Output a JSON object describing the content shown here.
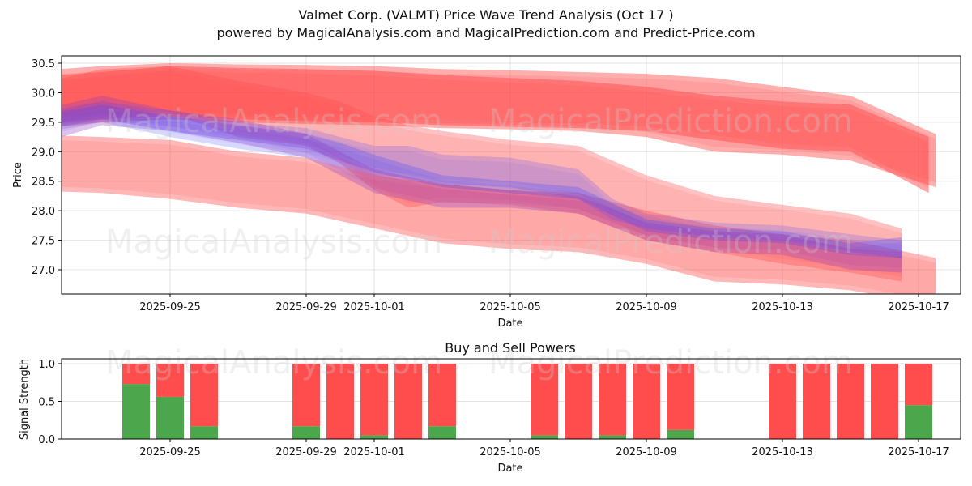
{
  "header": {
    "title": "Valmet Corp. (VALMT) Price Wave Trend Analysis (Oct 17 )",
    "subtitle": "powered by MagicalAnalysis.com and MagicalPrediction.com and Predict-Price.com"
  },
  "watermarks": [
    "MagicalAnalysis.com",
    "MagicalPrediction.com"
  ],
  "colors": {
    "sell_red": "#ff4c4c",
    "buy_green": "#4ca64c",
    "band_red": "#ff4c4c",
    "band_blue": "#4c4cff"
  },
  "chart_data": [
    {
      "type": "area",
      "title": "",
      "xlabel": "Date",
      "ylabel": "Price",
      "ylim": [
        26.6,
        30.6
      ],
      "yticks": [
        "27.0",
        "27.5",
        "28.0",
        "28.5",
        "29.0",
        "29.5",
        "30.0",
        "30.5"
      ],
      "ytick_values": [
        27.0,
        27.5,
        28.0,
        28.5,
        29.0,
        29.5,
        30.0,
        30.5
      ],
      "xlim": [
        "2025-09-21",
        "2025-10-18"
      ],
      "xticks": [
        "2025-09-25",
        "2025-09-29",
        "2025-10-01",
        "2025-10-05",
        "2025-10-09",
        "2025-10-13",
        "2025-10-17"
      ],
      "grid": true,
      "series": [
        {
          "name": "upper-red-band",
          "color": "red",
          "opacity": 0.45,
          "x": [
            -0.5,
            2,
            4,
            6,
            8,
            10,
            12,
            14,
            16,
            18,
            20,
            22,
            24,
            26.5
          ],
          "upper": [
            30.35,
            30.45,
            30.5,
            30.48,
            30.47,
            30.45,
            30.4,
            30.38,
            30.35,
            30.32,
            30.25,
            30.1,
            29.95,
            29.3
          ],
          "lower": [
            29.35,
            29.5,
            29.55,
            29.5,
            29.47,
            29.45,
            29.4,
            29.38,
            29.35,
            29.25,
            29.0,
            28.95,
            28.85,
            28.4
          ]
        },
        {
          "name": "upper-red-band-2",
          "color": "red",
          "opacity": 0.5,
          "x": [
            -0.5,
            2,
            4,
            6,
            8,
            10,
            12,
            14,
            16,
            18,
            20,
            22,
            24,
            26.3
          ],
          "upper": [
            30.25,
            30.35,
            30.45,
            30.42,
            30.4,
            30.37,
            30.3,
            30.25,
            30.2,
            30.1,
            29.95,
            29.85,
            29.8,
            29.25
          ],
          "lower": [
            29.45,
            29.55,
            29.6,
            29.55,
            29.52,
            29.5,
            29.45,
            29.42,
            29.4,
            29.35,
            29.2,
            29.05,
            29.0,
            28.3
          ]
        },
        {
          "name": "lower-red-band",
          "color": "red",
          "opacity": 0.4,
          "x": [
            -0.5,
            2,
            4,
            6,
            8,
            10,
            12,
            14,
            16,
            18,
            20,
            22,
            24,
            26.5
          ],
          "upper": [
            29.3,
            29.25,
            29.2,
            29.0,
            28.9,
            28.6,
            28.45,
            28.35,
            28.3,
            28.0,
            27.75,
            27.6,
            27.5,
            27.2
          ],
          "lower": [
            28.35,
            28.3,
            28.2,
            28.05,
            27.95,
            27.7,
            27.45,
            27.35,
            27.3,
            27.1,
            26.8,
            26.75,
            26.65,
            26.4
          ]
        },
        {
          "name": "mid-red-band",
          "color": "red",
          "opacity": 0.35,
          "x": [
            0.5,
            2,
            4,
            6,
            8,
            9,
            10,
            11,
            12,
            14,
            16,
            18,
            20,
            22,
            24,
            25.5
          ],
          "upper": [
            30.2,
            30.4,
            30.45,
            30.2,
            30.0,
            29.85,
            29.6,
            29.45,
            29.35,
            29.2,
            29.1,
            28.6,
            28.25,
            28.1,
            27.95,
            27.7
          ],
          "lower": [
            29.55,
            29.75,
            29.65,
            29.25,
            29.1,
            28.8,
            28.35,
            28.05,
            28.15,
            28.1,
            27.95,
            27.5,
            27.3,
            27.1,
            26.95,
            26.8
          ]
        },
        {
          "name": "blue-band-outer",
          "color": "blue",
          "opacity": 0.22,
          "x": [
            0.5,
            2,
            4,
            6,
            8,
            10,
            11,
            12,
            14,
            16,
            17,
            18,
            20,
            22,
            24,
            25.5
          ],
          "upper": [
            29.7,
            29.85,
            29.7,
            29.5,
            29.4,
            29.1,
            29.1,
            28.95,
            28.9,
            28.7,
            28.2,
            27.95,
            27.8,
            27.75,
            27.6,
            27.5
          ],
          "lower": [
            29.35,
            29.5,
            29.25,
            29.05,
            28.9,
            28.6,
            28.55,
            28.45,
            28.4,
            28.2,
            27.85,
            27.7,
            27.55,
            27.5,
            27.3,
            27.2
          ]
        },
        {
          "name": "blue-band-inner",
          "color": "blue",
          "opacity": 0.3,
          "x": [
            0.5,
            2,
            4,
            6,
            8,
            9,
            10,
            12,
            14,
            16,
            18,
            20,
            22,
            24,
            25.5
          ],
          "upper": [
            29.65,
            29.8,
            29.6,
            29.45,
            29.3,
            29.15,
            28.95,
            28.6,
            28.5,
            28.4,
            27.85,
            27.7,
            27.65,
            27.45,
            27.55
          ],
          "lower": [
            29.4,
            29.55,
            29.35,
            29.2,
            29.05,
            28.85,
            28.65,
            28.4,
            28.3,
            28.2,
            27.65,
            27.5,
            27.45,
            27.25,
            27.2
          ]
        },
        {
          "name": "purple-band",
          "color": "purple",
          "opacity": 0.3,
          "x": [
            0.5,
            2,
            4,
            6,
            8,
            10,
            12,
            14,
            16,
            18,
            20,
            22,
            24,
            25.5
          ],
          "upper": [
            29.75,
            29.95,
            29.7,
            29.55,
            29.3,
            28.7,
            28.45,
            28.35,
            28.25,
            27.8,
            27.65,
            27.6,
            27.35,
            27.3
          ],
          "lower": [
            29.2,
            29.45,
            29.35,
            29.15,
            28.9,
            28.3,
            28.05,
            28.05,
            27.95,
            27.5,
            27.3,
            27.25,
            27.0,
            26.95
          ]
        }
      ]
    },
    {
      "type": "bar",
      "title": "Buy and Sell Powers",
      "xlabel": "Date",
      "ylabel": "Signal Strength",
      "ylim": [
        0,
        1.05
      ],
      "yticks": [
        "0.0",
        "0.5",
        "1.0"
      ],
      "ytick_values": [
        0.0,
        0.5,
        1.0
      ],
      "xticks": [
        "2025-09-25",
        "2025-09-29",
        "2025-10-01",
        "2025-10-05",
        "2025-10-09",
        "2025-10-13",
        "2025-10-17"
      ],
      "grid": true,
      "categories": [
        "2025-09-24",
        "2025-09-25",
        "2025-09-26",
        "2025-09-29",
        "2025-09-30",
        "2025-10-01",
        "2025-10-02",
        "2025-10-03",
        "2025-10-06",
        "2025-10-07",
        "2025-10-08",
        "2025-10-09",
        "2025-10-10",
        "2025-10-13",
        "2025-10-14",
        "2025-10-15",
        "2025-10-16",
        "2025-10-17"
      ],
      "series": [
        {
          "name": "Buy",
          "values": [
            0.73,
            0.56,
            0.17,
            0.17,
            0.0,
            0.05,
            0.0,
            0.17,
            0.05,
            0.0,
            0.05,
            0.0,
            0.12,
            0.0,
            0.0,
            0.0,
            0.0,
            0.45
          ]
        },
        {
          "name": "Sell",
          "values": [
            0.27,
            0.44,
            0.83,
            0.83,
            1.0,
            0.95,
            1.0,
            0.83,
            0.95,
            1.0,
            0.95,
            1.0,
            0.88,
            1.0,
            1.0,
            1.0,
            1.0,
            0.55
          ]
        }
      ]
    }
  ]
}
